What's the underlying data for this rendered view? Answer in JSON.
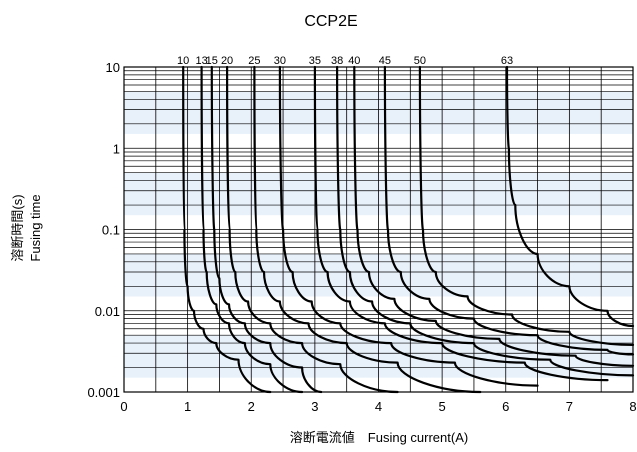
{
  "chart_data": {
    "type": "line",
    "title": "CCP2E",
    "xlabel": "溶断電流値　Fusing current(A)",
    "ylabel_line1": "溶断時間(s)",
    "ylabel_line2": "Fusing time",
    "xlim": [
      0,
      8
    ],
    "ylim": [
      0.001,
      10
    ],
    "yscale": "log",
    "x_ticks": [
      "0",
      "1",
      "2",
      "3",
      "4",
      "5",
      "6",
      "7",
      "8"
    ],
    "y_ticks": [
      "10",
      "1",
      "0.1",
      "0.01",
      "0.001"
    ],
    "grid": true,
    "background_colors": {
      "light_band": "#e8f1fa",
      "plot_base": "#ffffff"
    },
    "series": [
      {
        "name": "10",
        "x": [
          0.93,
          0.95,
          1.0,
          1.1,
          1.25,
          1.45,
          1.8,
          2.3
        ],
        "y": [
          10,
          0.1,
          0.02,
          0.01,
          0.006,
          0.004,
          0.0025,
          0.001
        ]
      },
      {
        "name": "13",
        "x": [
          1.22,
          1.25,
          1.3,
          1.45,
          1.65,
          1.9,
          2.3,
          2.8
        ],
        "y": [
          10,
          0.1,
          0.03,
          0.012,
          0.007,
          0.004,
          0.0022,
          0.001
        ]
      },
      {
        "name": "15",
        "x": [
          1.38,
          1.42,
          1.5,
          1.65,
          1.9,
          2.3,
          2.8,
          3.1
        ],
        "y": [
          10,
          0.1,
          0.025,
          0.012,
          0.007,
          0.004,
          0.002,
          0.001
        ]
      },
      {
        "name": "20",
        "x": [
          1.62,
          1.66,
          1.75,
          1.95,
          2.3,
          2.8,
          3.4,
          4.3
        ],
        "y": [
          10,
          0.1,
          0.03,
          0.013,
          0.007,
          0.004,
          0.0022,
          0.001
        ]
      },
      {
        "name": "25",
        "x": [
          2.05,
          2.08,
          2.2,
          2.45,
          2.9,
          3.5,
          4.3,
          5.6
        ],
        "y": [
          10,
          0.1,
          0.03,
          0.013,
          0.007,
          0.004,
          0.0023,
          0.001
        ]
      },
      {
        "name": "30",
        "x": [
          2.45,
          2.5,
          2.65,
          2.95,
          3.4,
          4.2,
          5.2,
          6.5
        ],
        "y": [
          10,
          0.1,
          0.03,
          0.013,
          0.007,
          0.004,
          0.0023,
          0.0012
        ]
      },
      {
        "name": "35",
        "x": [
          3.0,
          3.04,
          3.2,
          3.55,
          4.1,
          5.0,
          6.3,
          7.6
        ],
        "y": [
          10,
          0.1,
          0.03,
          0.013,
          0.007,
          0.004,
          0.0023,
          0.0014
        ]
      },
      {
        "name": "38",
        "x": [
          3.35,
          3.4,
          3.55,
          3.9,
          4.5,
          5.5,
          6.7,
          8.0
        ],
        "y": [
          10,
          0.1,
          0.03,
          0.013,
          0.007,
          0.004,
          0.0025,
          0.0016
        ]
      },
      {
        "name": "40",
        "x": [
          3.62,
          3.67,
          3.85,
          4.25,
          4.9,
          5.9,
          7.1,
          8.0
        ],
        "y": [
          10,
          0.1,
          0.03,
          0.014,
          0.0075,
          0.0045,
          0.0028,
          0.0021
        ]
      },
      {
        "name": "45",
        "x": [
          4.1,
          4.15,
          4.35,
          4.8,
          5.5,
          6.5,
          7.6,
          8.0
        ],
        "y": [
          10,
          0.1,
          0.03,
          0.014,
          0.008,
          0.005,
          0.0033,
          0.0029
        ]
      },
      {
        "name": "50",
        "x": [
          4.65,
          4.7,
          4.9,
          5.4,
          6.1,
          7.0,
          8.0
        ],
        "y": [
          10,
          0.1,
          0.03,
          0.015,
          0.009,
          0.0055,
          0.0038
        ]
      },
      {
        "name": "63",
        "x": [
          6.02,
          6.05,
          6.15,
          6.5,
          7.0,
          7.6,
          8.0
        ],
        "y": [
          10,
          1.0,
          0.2,
          0.05,
          0.02,
          0.01,
          0.0065
        ]
      }
    ]
  }
}
